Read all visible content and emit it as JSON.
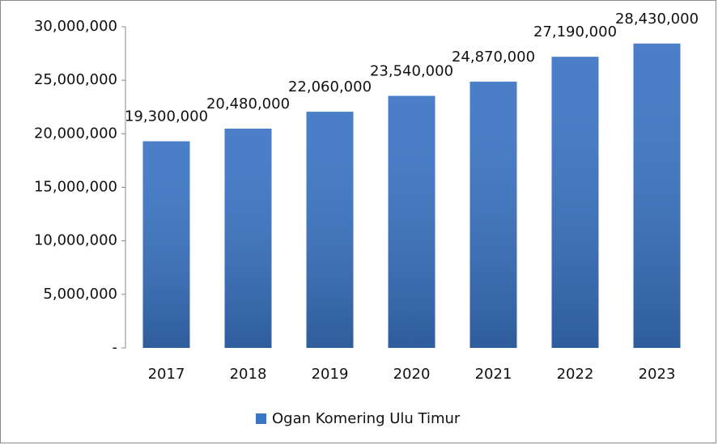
{
  "chart_data": {
    "type": "bar",
    "categories": [
      "2017",
      "2018",
      "2019",
      "2020",
      "2021",
      "2022",
      "2023"
    ],
    "series": [
      {
        "name": "Ogan Komering Ulu Timur",
        "color": "#3a74c4",
        "values": [
          19300000,
          20480000,
          22060000,
          23540000,
          24870000,
          27190000,
          28430000
        ],
        "value_labels": [
          "19,300,000",
          "20,480,000",
          "22,060,000",
          "23,540,000",
          "24,870,000",
          "27,190,000",
          "28,430,000"
        ]
      }
    ],
    "ylim": [
      0,
      30000000
    ],
    "yticks": [
      {
        "value": 0,
        "label": "-"
      },
      {
        "value": 5000000,
        "label": "5,000,000"
      },
      {
        "value": 10000000,
        "label": "10,000,000"
      },
      {
        "value": 15000000,
        "label": "15,000,000"
      },
      {
        "value": 20000000,
        "label": "20,000,000"
      },
      {
        "value": 25000000,
        "label": "25,000,000"
      },
      {
        "value": 30000000,
        "label": "30,000,000"
      }
    ],
    "grid": false,
    "legend": "bottom"
  }
}
